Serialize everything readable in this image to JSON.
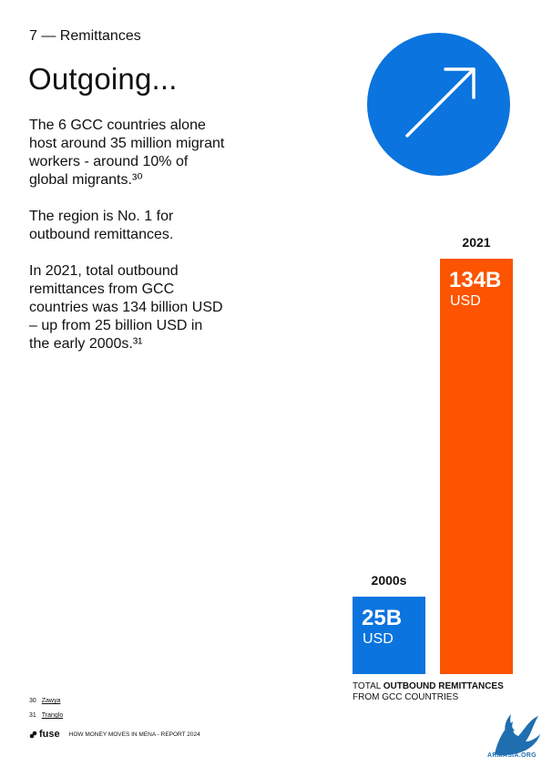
{
  "header": {
    "section": "7 — Remittances",
    "title": "Outgoing..."
  },
  "body": {
    "paragraphs": [
      "The 6 GCC countries alone\nhost around 35 million migrant\nworkers - around 10% of\nglobal migrants.³⁰",
      "The region is No. 1 for\noutbound remittances.",
      "In 2021, total outbound\nremittances from GCC\ncountries was 134 billion USD\n– up from 25 billion USD  in\nthe early 2000s.³¹"
    ]
  },
  "icon": {
    "name": "arrow-up-right-icon",
    "color": "#0b74de"
  },
  "chart_data": {
    "type": "bar",
    "categories": [
      "2000s",
      "2021"
    ],
    "values": [
      25,
      134
    ],
    "value_labels": [
      "25B",
      "134B"
    ],
    "unit": "USD",
    "colors": [
      "#0b74de",
      "#fc5400"
    ],
    "title": "",
    "caption_prefix": "TOTAL ",
    "caption_bold": "OUTBOUND REMITTANCES",
    "caption_line2": "FROM GCC COUNTRIES",
    "ylim": [
      0,
      134
    ]
  },
  "footnotes": [
    {
      "num": "30",
      "source": "Zawya"
    },
    {
      "num": "31",
      "source": "Tranglo"
    }
  ],
  "footer": {
    "brand": "fuse",
    "text": "HOW MONEY MOVES IN MENA - REPORT 2024"
  },
  "watermark": {
    "text": "ARMASIA.ORG"
  }
}
